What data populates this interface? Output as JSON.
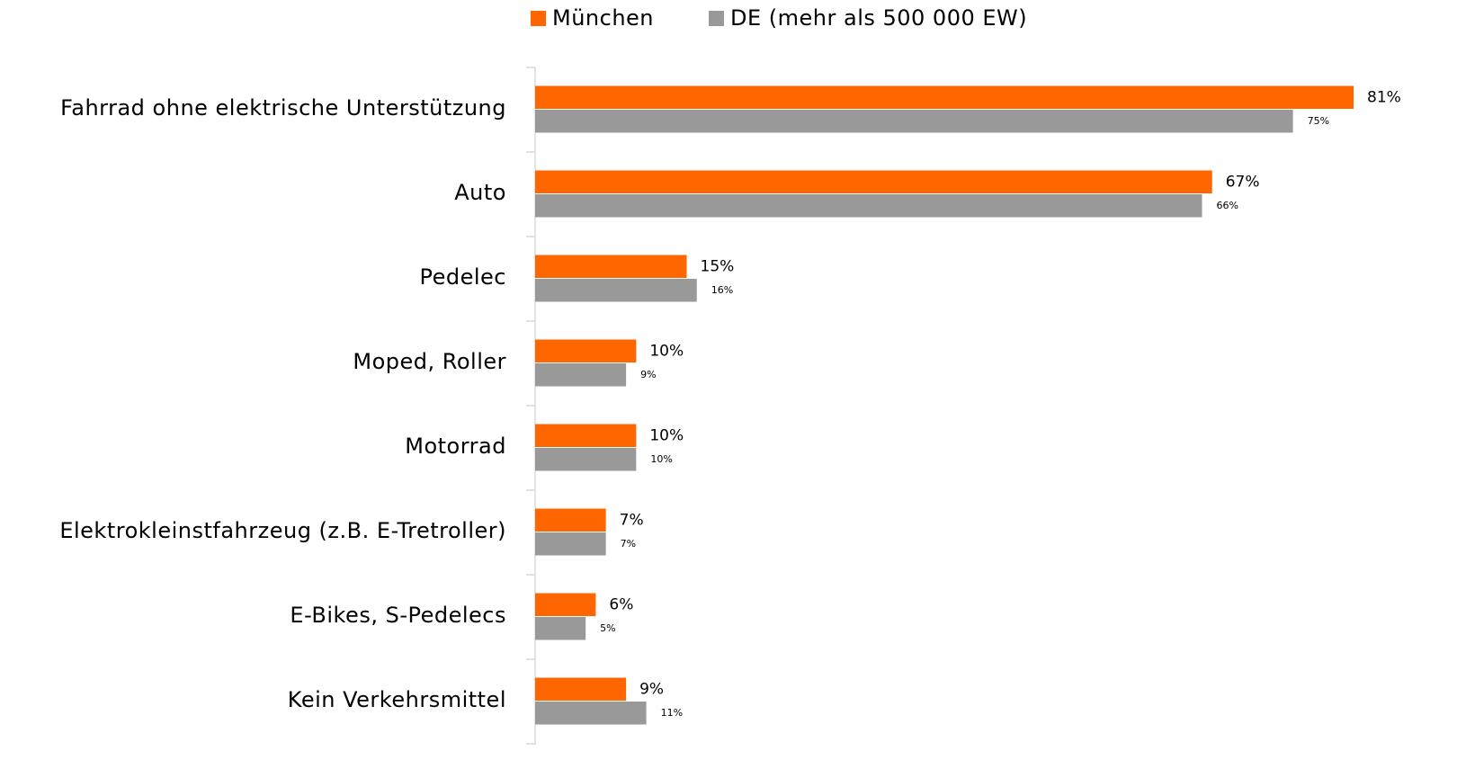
{
  "chart_data": {
    "type": "barh",
    "categories": [
      "Fahrrad ohne elektrische Unterstützung",
      "Auto",
      "Pedelec",
      "Moped, Roller",
      "Motorrad",
      "Elektrokleinstfahrzeug (z.B. E-Tretroller)",
      "E-Bikes, S-Pedelecs",
      "Kein Verkehrsmittel"
    ],
    "series": [
      {
        "name": "München",
        "color": "#ff6600",
        "values": [
          81,
          67,
          15,
          10,
          10,
          7,
          6,
          9
        ],
        "value_labels": [
          "81%",
          "67%",
          "15%",
          "10%",
          "10%",
          "7%",
          "6%",
          "9%"
        ]
      },
      {
        "name": "DE (mehr als 500 000 EW)",
        "color": "#999999",
        "values": [
          75,
          66,
          16,
          9,
          10,
          7,
          5,
          11
        ],
        "value_labels": [
          "75%",
          "66%",
          "16%",
          "9%",
          "10%",
          "7%",
          "5%",
          "11%"
        ]
      }
    ],
    "legend": "top"
  }
}
